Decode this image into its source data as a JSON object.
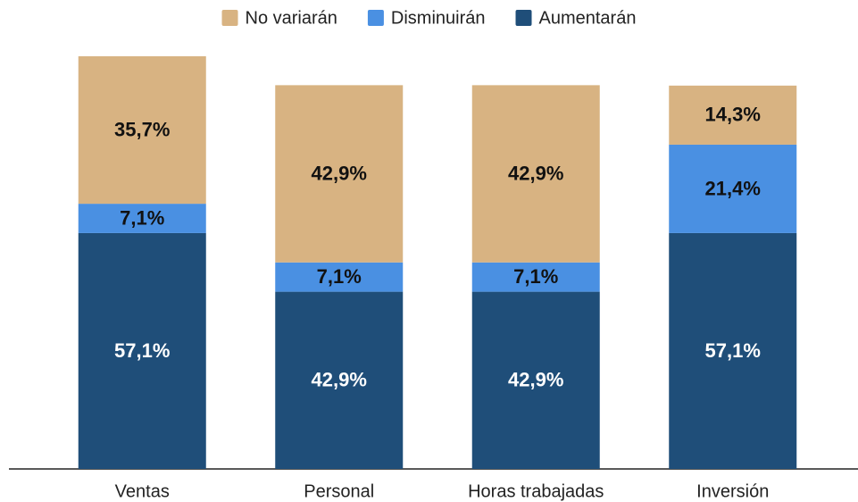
{
  "chart_data": {
    "type": "stacked_bar",
    "categories": [
      "Ventas",
      "Personal",
      "Horas trabajadas",
      "Inversión"
    ],
    "series": [
      {
        "name": "Aumentarán",
        "color": "#1f4e79",
        "values": [
          57.1,
          42.9,
          42.9,
          57.1
        ],
        "value_labels": [
          "57,1%",
          "42,9%",
          "42,9%",
          "57,1%"
        ]
      },
      {
        "name": "Disminuirán",
        "color": "#4a90e2",
        "values": [
          7.1,
          7.1,
          7.1,
          21.4
        ],
        "value_labels": [
          "7,1%",
          "7,1%",
          "7,1%",
          "21,4%"
        ]
      },
      {
        "name": "No variarán",
        "color": "#d8b382",
        "values": [
          35.7,
          42.9,
          42.9,
          14.3
        ],
        "value_labels": [
          "35,7%",
          "42,9%",
          "42,9%",
          "14,3%"
        ]
      }
    ],
    "legend_order": [
      "No variarán",
      "Disminuirán",
      "Aumentarán"
    ]
  }
}
